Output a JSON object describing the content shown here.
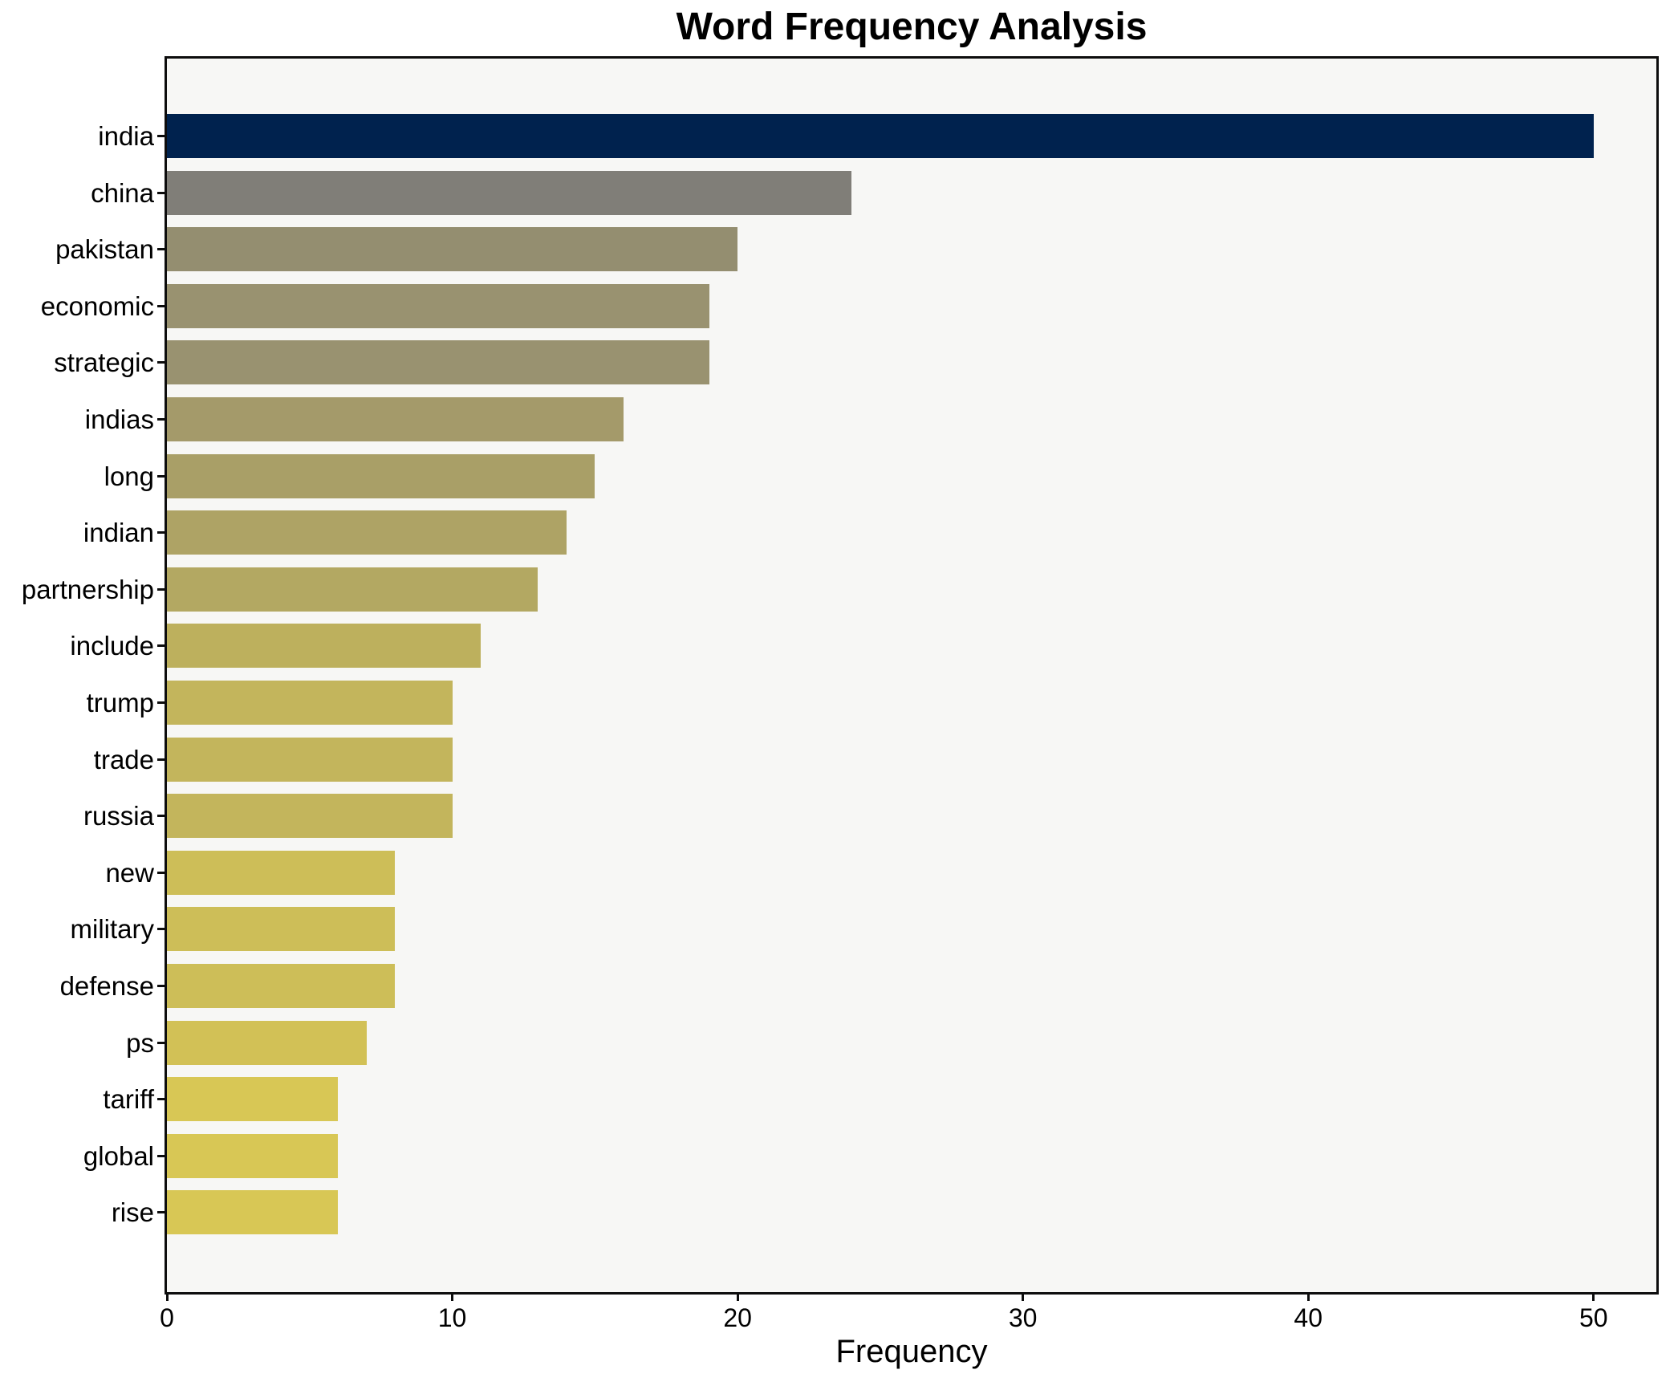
{
  "chart_data": {
    "type": "bar",
    "orientation": "horizontal",
    "title": "Word Frequency Analysis",
    "xlabel": "Frequency",
    "categories": [
      "india",
      "china",
      "pakistan",
      "economic",
      "strategic",
      "indias",
      "long",
      "indian",
      "partnership",
      "include",
      "trump",
      "trade",
      "russia",
      "new",
      "military",
      "defense",
      "ps",
      "tariff",
      "global",
      "rise"
    ],
    "values": [
      50,
      24,
      20,
      19,
      19,
      16,
      15,
      14,
      13,
      11,
      10,
      10,
      10,
      8,
      8,
      8,
      7,
      6,
      6,
      6
    ],
    "bar_colors": [
      "#00224e",
      "#807e78",
      "#948e70",
      "#999270",
      "#999270",
      "#a49a6a",
      "#a99f67",
      "#aea365",
      "#b3a862",
      "#bdb05d",
      "#c3b55c",
      "#c3b55c",
      "#c3b55c",
      "#cdbe58",
      "#cdbe58",
      "#cdbe58",
      "#d2c156",
      "#d8c755",
      "#d8c755",
      "#d8c755"
    ],
    "x_ticks": [
      0,
      10,
      20,
      30,
      40,
      50
    ],
    "xlim": [
      0,
      52.2
    ],
    "grid": false,
    "plot_background": "#f7f7f5",
    "figure_background": "#ffffff",
    "axis_color": "#0d0d0d",
    "text_color": "#000000"
  }
}
